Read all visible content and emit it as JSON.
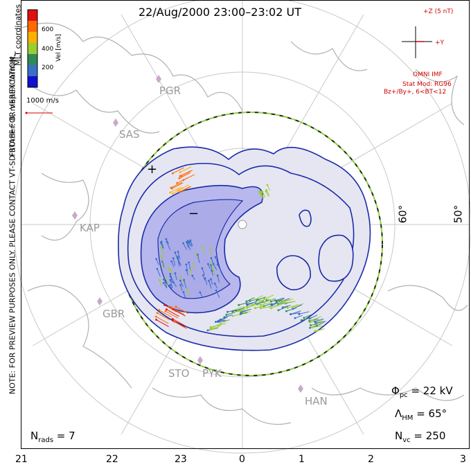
{
  "title": "22/Aug/2000 23:00–23:02 UT",
  "side_note": "NOTE: FOR PREVIEW PURPOSES ONLY. PLEASE CONTACT VT-SD STAFF FOR VERIFICATION.",
  "side_note2": "FitOrder: 8, mapEX format",
  "colorbar": {
    "label": "Vel [m/s]",
    "coords": "MLT coordinates",
    "ticks": [
      "600",
      "400",
      "200"
    ],
    "colors": [
      "#e01010",
      "#ff6a00",
      "#ffb000",
      "#9acd32",
      "#2e8b57",
      "#3a6fc8",
      "#1010d0"
    ]
  },
  "ref_vector": "1000 m/s",
  "imf": {
    "bz_label": "+Z (5 nT)",
    "by_label": "+Y",
    "source": "OMNI IMF",
    "model": "Stat Mod: RG96",
    "condition": "Bz+/By+, 6<BT<12"
  },
  "stations": [
    "PGR",
    "SAS",
    "KAP",
    "GBR",
    "STO",
    "PYK",
    "HAN"
  ],
  "lat_labels": [
    "60°",
    "50°"
  ],
  "cell_markers": [
    "+",
    "−"
  ],
  "stats": {
    "phi_label": "Φ",
    "phi_sub": "pc",
    "phi_value": " = 22 kV",
    "lambda_label": "Λ",
    "lambda_sub": "HM",
    "lambda_value": " = 65°",
    "nvc_label": "N",
    "nvc_sub": "vc",
    "nvc_value": " = 250",
    "nrads_label": "N",
    "nrads_sub": "rads",
    "nrads_value": " = 7"
  },
  "mlt_axis": [
    "21",
    "22",
    "23",
    "0",
    "1",
    "2",
    "3"
  ],
  "colors": {
    "contour": "#1a2aa8",
    "fill_light": "#e6e6f2",
    "fill_dark": "#b8b8ee",
    "grid": "#c8c8c8",
    "coast": "#b0b0b0",
    "station": "#c9a8c9"
  }
}
